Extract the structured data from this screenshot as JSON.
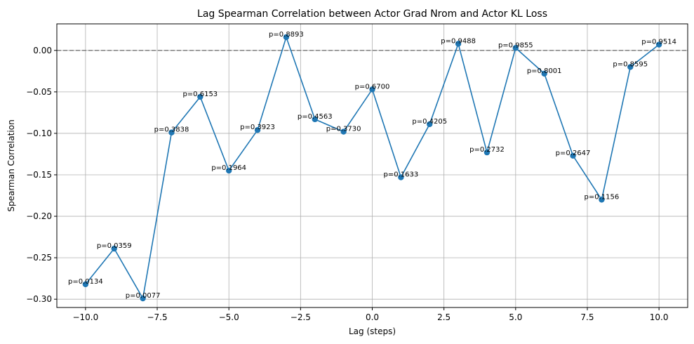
{
  "chart_data": {
    "type": "line",
    "title": "Lag Spearman Correlation between Actor Grad Nrom and Actor KL Loss",
    "xlabel": "Lag (steps)",
    "ylabel": "Spearman Correlation",
    "xlim": [
      -11,
      11
    ],
    "ylim": [
      -0.31,
      0.032
    ],
    "x_ticks": [
      -10.0,
      -7.5,
      -5.0,
      -2.5,
      0.0,
      2.5,
      5.0,
      7.5,
      10.0
    ],
    "x_tick_labels": [
      "−10.0",
      "−7.5",
      "−5.0",
      "−2.5",
      "0.0",
      "2.5",
      "5.0",
      "7.5",
      "10.0"
    ],
    "y_ticks": [
      0.0,
      -0.05,
      -0.1,
      -0.15,
      -0.2,
      -0.25,
      -0.3
    ],
    "y_tick_labels": [
      "0.00",
      "−0.05",
      "−0.10",
      "−0.15",
      "−0.20",
      "−0.25",
      "−0.30"
    ],
    "grid": true,
    "reference_line": {
      "y": 0.0,
      "style": "dashed",
      "color": "#808080"
    },
    "series_color": "#1f77b4",
    "x": [
      -10,
      -9,
      -8,
      -7,
      -6,
      -5,
      -4,
      -3,
      -2,
      -1,
      0,
      1,
      2,
      3,
      4,
      5,
      6,
      7,
      8,
      9,
      10
    ],
    "y": [
      -0.282,
      -0.239,
      -0.299,
      -0.099,
      -0.056,
      -0.145,
      -0.096,
      0.016,
      -0.083,
      -0.098,
      -0.047,
      -0.153,
      -0.089,
      0.008,
      -0.123,
      0.003,
      -0.028,
      -0.127,
      -0.18,
      -0.02,
      0.007
    ],
    "p_values": [
      "p=0.0134",
      "p=0.0359",
      "p=0.0077",
      "p=0.3838",
      "p=0.6153",
      "p=0.1964",
      "p=0.3923",
      "p=0.8893",
      "p=0.4563",
      "p=0.3730",
      "p=0.6700",
      "p=0.1633",
      "p=0.4205",
      "p=0.9488",
      "p=0.2732",
      "p=0.9855",
      "p=0.8001",
      "p=0.2647",
      "p=0.1156",
      "p=0.8595",
      "p=0.9514"
    ]
  }
}
